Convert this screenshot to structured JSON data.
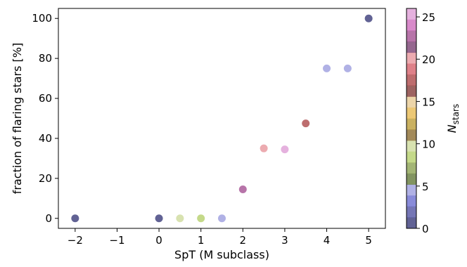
{
  "chart_data": {
    "type": "scatter",
    "title": "",
    "xlabel": "SpT (M subclass)",
    "ylabel": "fraction of flaring stars [%]",
    "xlim": [
      -2.4,
      5.4
    ],
    "ylim": [
      -5,
      105
    ],
    "x_ticks": [
      -2,
      -1,
      0,
      1,
      2,
      3,
      4,
      5
    ],
    "y_ticks": [
      0,
      20,
      40,
      60,
      80,
      100
    ],
    "grid": false,
    "points": [
      {
        "x": -2.0,
        "y": 0,
        "n_stars": 1
      },
      {
        "x": 0.0,
        "y": 0,
        "n_stars": 1
      },
      {
        "x": 0.5,
        "y": 0,
        "n_stars": 10
      },
      {
        "x": 1.0,
        "y": 0,
        "n_stars": 9
      },
      {
        "x": 1.5,
        "y": 0,
        "n_stars": 4
      },
      {
        "x": 2.0,
        "y": 14.5,
        "n_stars": 23
      },
      {
        "x": 2.5,
        "y": 35,
        "n_stars": 20
      },
      {
        "x": 3.0,
        "y": 34.5,
        "n_stars": 25
      },
      {
        "x": 3.5,
        "y": 47.5,
        "n_stars": 18
      },
      {
        "x": 4.0,
        "y": 75,
        "n_stars": 5
      },
      {
        "x": 4.5,
        "y": 75,
        "n_stars": 5
      },
      {
        "x": 5.0,
        "y": 100,
        "n_stars": 1
      }
    ],
    "colorbar": {
      "label": "N_stars",
      "label_main": "N",
      "label_sub": "stars",
      "range": [
        0,
        26
      ],
      "ticks": [
        0,
        5,
        10,
        15,
        20,
        25
      ],
      "colormap": "tab20b",
      "colors": [
        "#393b79",
        "#5254a3",
        "#6b6ecf",
        "#9c9ede",
        "#637939",
        "#8ca252",
        "#b5cf6b",
        "#cedb9c",
        "#8c6d31",
        "#bd9e39",
        "#e7ba52",
        "#e7cb94",
        "#843c39",
        "#ad494a",
        "#d6616b",
        "#e7969c",
        "#7b4173",
        "#a55194",
        "#ce6dbd",
        "#de9ed6"
      ]
    }
  }
}
